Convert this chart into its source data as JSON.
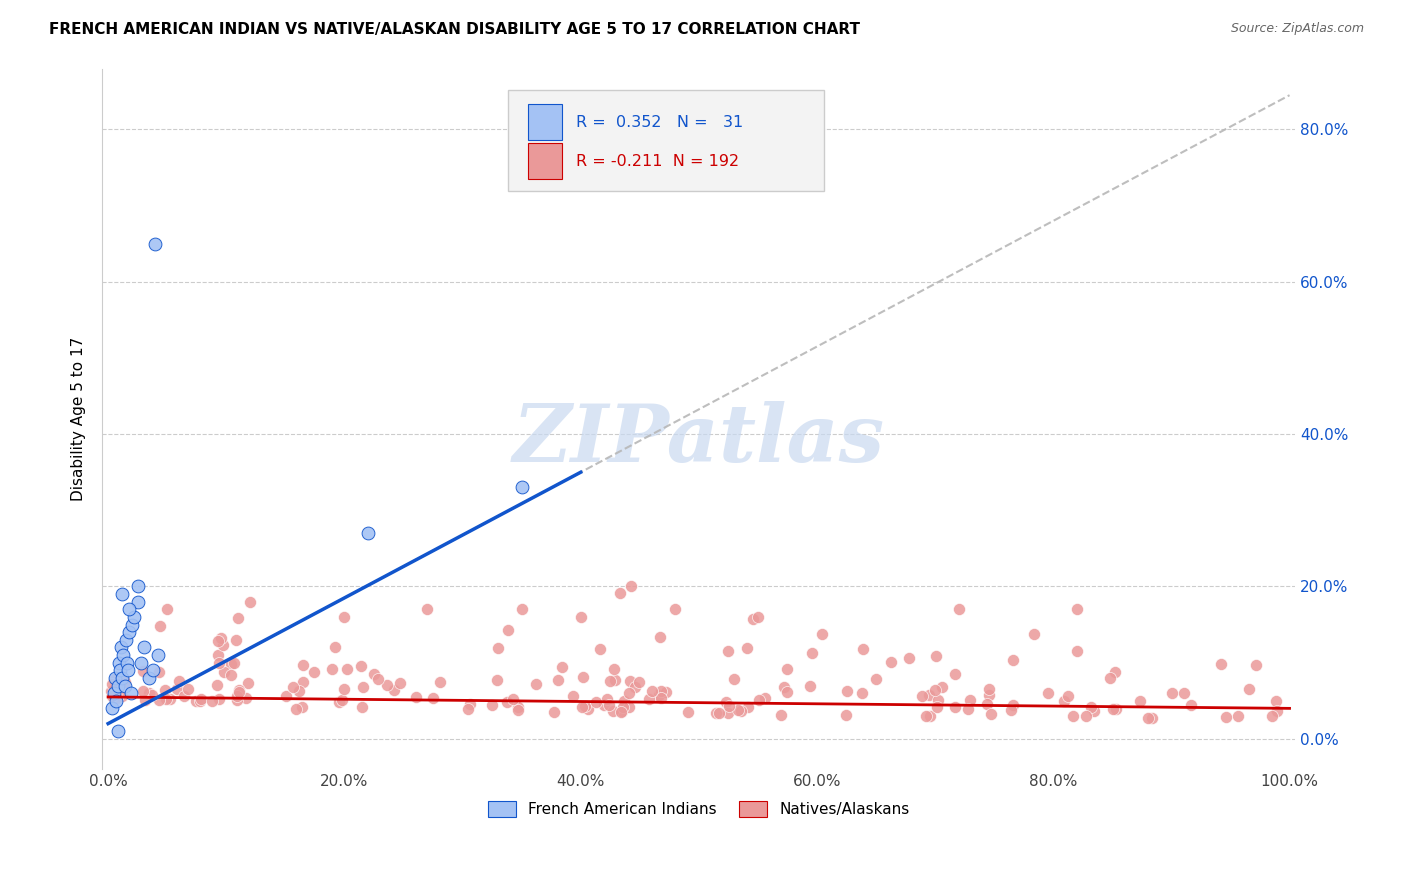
{
  "title": "FRENCH AMERICAN INDIAN VS NATIVE/ALASKAN DISABILITY AGE 5 TO 17 CORRELATION CHART",
  "source": "Source: ZipAtlas.com",
  "ylabel": "Disability Age 5 to 17",
  "xlim": [
    0.0,
    1.0
  ],
  "ylim": [
    -0.04,
    0.88
  ],
  "yticks": [
    0.0,
    0.2,
    0.4,
    0.6,
    0.8
  ],
  "yticklabels": [
    "0.0%",
    "20.0%",
    "40.0%",
    "60.0%",
    "80.0%"
  ],
  "xticks": [
    0.0,
    0.2,
    0.4,
    0.6,
    0.8,
    1.0
  ],
  "xticklabels": [
    "0.0%",
    "20.0%",
    "40.0%",
    "60.0%",
    "80.0%",
    "100.0%"
  ],
  "blue_R": 0.352,
  "blue_N": 31,
  "pink_R": -0.211,
  "pink_N": 192,
  "blue_color": "#a4c2f4",
  "pink_color": "#ea9999",
  "blue_line_color": "#1155cc",
  "pink_line_color": "#cc0000",
  "dashed_line_color": "#b7b7b7",
  "watermark_color": "#c9d9f0",
  "background_color": "#ffffff",
  "grid_color": "#cccccc",
  "legend_box_color": "#f3f3f3",
  "legend_border_color": "#cccccc",
  "right_tick_color": "#1155cc",
  "title_color": "#000000",
  "source_color": "#666666",
  "ylabel_color": "#000000"
}
